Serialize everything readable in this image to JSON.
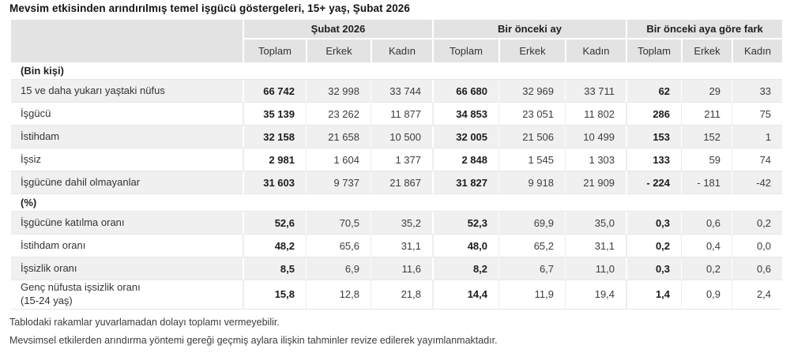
{
  "title": "Mevsim etkisinden arındırılmış temel işgücü göstergeleri, 15+ yaş, Şubat 2026",
  "colors": {
    "header_bg": "#e3e3e3",
    "row_stripe": "#f0f0f0",
    "row_white": "#ffffff",
    "grid_line": "#e7e7e7",
    "text_primary": "#1c1c1c",
    "text_secondary": "#3d3d3d"
  },
  "chart_data": {
    "type": "table",
    "title": "Mevsim etkisinden arındırılmış temel işgücü göstergeleri, 15+ yaş, Şubat 2026",
    "column_groups": [
      {
        "label": "Şubat 2026",
        "columns": [
          "Toplam",
          "Erkek",
          "Kadın"
        ]
      },
      {
        "label": "Bir önceki ay",
        "columns": [
          "Toplam",
          "Erkek",
          "Kadın"
        ]
      },
      {
        "label": "Bir önceki aya göre fark",
        "columns": [
          "Toplam",
          "Erkek",
          "Kadın"
        ]
      }
    ],
    "sections": [
      {
        "header": "(Bin kişi)",
        "rows": [
          {
            "label": "15 ve daha yukarı yaştaki nüfus",
            "values": [
              "66 742",
              "32 998",
              "33 744",
              "66 680",
              "32 969",
              "33 711",
              "62",
              "29",
              "33"
            ]
          },
          {
            "label": "İşgücü",
            "values": [
              "35 139",
              "23 262",
              "11 877",
              "34 853",
              "23 051",
              "11 802",
              "286",
              "211",
              "75"
            ]
          },
          {
            "label": "İstihdam",
            "values": [
              "32 158",
              "21 658",
              "10 500",
              "32 005",
              "21 506",
              "10 499",
              "153",
              "152",
              "1"
            ]
          },
          {
            "label": "İşsiz",
            "values": [
              "2 981",
              "1 604",
              "1 377",
              "2 848",
              "1 545",
              "1 303",
              "133",
              "59",
              "74"
            ]
          },
          {
            "label": "İşgücüne dahil olmayanlar",
            "values": [
              "31 603",
              "9 737",
              "21 867",
              "31 827",
              "9 918",
              "21 909",
              "- 224",
              "- 181",
              "-42"
            ]
          }
        ]
      },
      {
        "header": "(%)",
        "rows": [
          {
            "label": "İşgücüne katılma oranı",
            "values": [
              "52,6",
              "70,5",
              "35,2",
              "52,3",
              "69,9",
              "35,0",
              "0,3",
              "0,6",
              "0,2"
            ]
          },
          {
            "label": "İstihdam oranı",
            "values": [
              "48,2",
              "65,6",
              "31,1",
              "48,0",
              "65,2",
              "31,1",
              "0,2",
              "0,4",
              "0,0"
            ]
          },
          {
            "label": "İşsizlik oranı",
            "values": [
              "8,5",
              "6,9",
              "11,6",
              "8,2",
              "6,7",
              "11,0",
              "0,3",
              "0,2",
              "0,6"
            ]
          },
          {
            "label": "Genç nüfusta işsizlik oranı\n(15-24 yaş)",
            "values": [
              "15,8",
              "12,8",
              "21,8",
              "14,4",
              "11,9",
              "19,4",
              "1,4",
              "0,9",
              "2,4"
            ]
          }
        ]
      }
    ]
  },
  "footnotes": [
    "Tablodaki rakamlar yuvarlamadan dolayı toplamı vermeyebilir.",
    "Mevsimsel etkilerden arındırma yöntemi gereği geçmiş aylara ilişkin tahminler revize edilerek yayımlanmaktadır."
  ]
}
